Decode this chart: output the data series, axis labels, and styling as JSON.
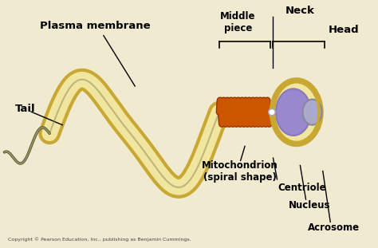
{
  "bg_color": "#f0ead0",
  "tail_color": "#f0e6a0",
  "tail_outline": "#c8a832",
  "mitochondrion_color": "#cc5500",
  "head_fill": "#9988cc",
  "head_outline": "#c8a832",
  "acrosome_color": "#aaaacc",
  "centriole_color": "#ffffff",
  "text_color": "#000000",
  "label_neck": "Neck",
  "label_middle": "Middle\npiece",
  "label_head": "Head",
  "label_tail": "Tail",
  "label_plasma": "Plasma membrane",
  "label_mito": "Mitochondrion\n(spiral shape)",
  "label_centriole": "Centriole",
  "label_nucleus": "Nucleus",
  "label_acrosome": "Acrosome",
  "copyright": "Copyright © Pearson Education, Inc., publishing as Benjamin Cummings."
}
